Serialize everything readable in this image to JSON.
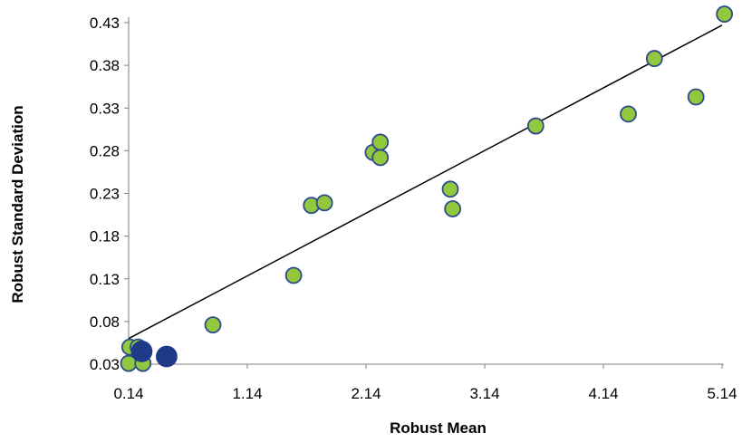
{
  "chart_data": {
    "type": "scatter",
    "title": "",
    "xlabel": "Robust Mean",
    "ylabel": "Robust Standard Deviation",
    "xlim": [
      0.14,
      5.14
    ],
    "ylim": [
      0.03,
      0.43
    ],
    "x_ticks": [
      "0.14",
      "1.14",
      "2.14",
      "3.14",
      "4.14",
      "5.14"
    ],
    "y_ticks": [
      "0.03",
      "0.08",
      "0.13",
      "0.18",
      "0.23",
      "0.28",
      "0.33",
      "0.38",
      "0.43"
    ],
    "grid": false,
    "legend": "none",
    "series": [
      {
        "color": "#92c83e",
        "edge_color": "#2e4a8c",
        "marker": "circle-small",
        "points": [
          {
            "x": 0.14,
            "y": 0.031
          },
          {
            "x": 0.15,
            "y": 0.05
          },
          {
            "x": 0.22,
            "y": 0.05
          },
          {
            "x": 0.26,
            "y": 0.031
          },
          {
            "x": 0.85,
            "y": 0.076
          },
          {
            "x": 1.53,
            "y": 0.134
          },
          {
            "x": 1.68,
            "y": 0.216
          },
          {
            "x": 1.79,
            "y": 0.219
          },
          {
            "x": 2.2,
            "y": 0.278
          },
          {
            "x": 2.26,
            "y": 0.29
          },
          {
            "x": 2.26,
            "y": 0.272
          },
          {
            "x": 2.85,
            "y": 0.235
          },
          {
            "x": 2.87,
            "y": 0.212
          },
          {
            "x": 3.57,
            "y": 0.309
          },
          {
            "x": 4.35,
            "y": 0.323
          },
          {
            "x": 4.57,
            "y": 0.388
          },
          {
            "x": 4.92,
            "y": 0.343
          },
          {
            "x": 5.16,
            "y": 0.44
          }
        ]
      },
      {
        "color": "#1f3a87",
        "edge_color": "#1f3a87",
        "marker": "circle-large",
        "points": [
          {
            "x": 0.25,
            "y": 0.045
          },
          {
            "x": 0.46,
            "y": 0.039
          }
        ]
      }
    ],
    "trendline": {
      "type": "linear",
      "color": "#000000",
      "from": {
        "x": 0.14,
        "y": 0.06
      },
      "to": {
        "x": 5.14,
        "y": 0.427
      }
    }
  }
}
